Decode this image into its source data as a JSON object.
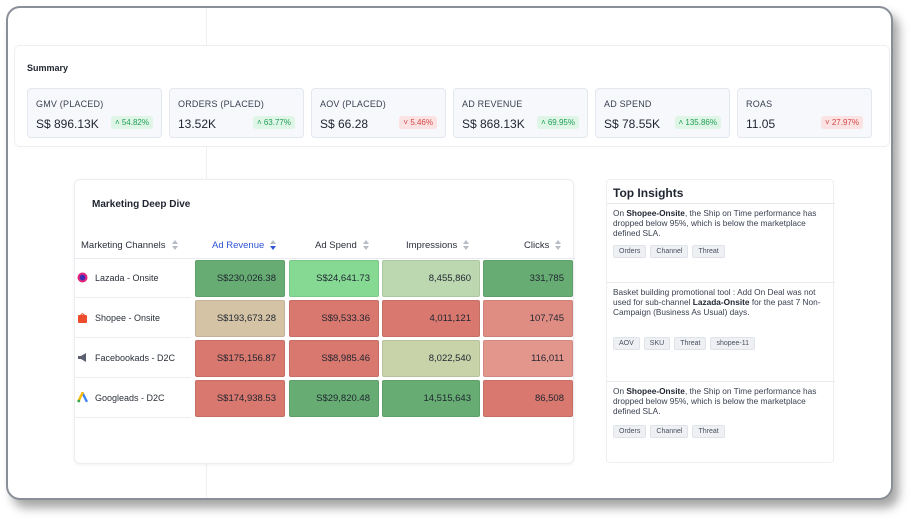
{
  "summary": {
    "title": "Summary",
    "kpis": [
      {
        "label": "GMV (PLACED)",
        "value": "S$ 896.13K",
        "change": "54.82%",
        "direction": "up"
      },
      {
        "label": "ORDERS (PLACED)",
        "value": "13.52K",
        "change": "63.77%",
        "direction": "up"
      },
      {
        "label": "AOV (PLACED)",
        "value": "S$ 66.28",
        "change": "5.46%",
        "direction": "down"
      },
      {
        "label": "AD REVENUE",
        "value": "S$ 868.13K",
        "change": "69.95%",
        "direction": "up"
      },
      {
        "label": "AD SPEND",
        "value": "S$ 78.55K",
        "change": "135.86%",
        "direction": "up"
      },
      {
        "label": "ROAS",
        "value": "11.05",
        "change": "27.97%",
        "direction": "down"
      }
    ]
  },
  "deep_dive": {
    "title": "Marketing Deep Dive",
    "columns": [
      "Marketing Channels",
      "Ad Revenue",
      "Ad Spend",
      "Impressions",
      "Clicks"
    ],
    "active_sort_column": "Ad Revenue",
    "rows": [
      {
        "channel": "Lazada - Onsite",
        "icon": "lazada-icon",
        "values": [
          "S$230,026.38",
          "S$24,641.73",
          "8,455,860",
          "331,785"
        ],
        "colors": [
          "#67ad73",
          "#86d993",
          "#bbd8b0",
          "#67ad73"
        ]
      },
      {
        "channel": "Shopee - Onsite",
        "icon": "shopee-icon",
        "values": [
          "S$193,673.28",
          "S$9,533.36",
          "4,011,121",
          "107,745"
        ],
        "colors": [
          "#d4c3a5",
          "#d8786e",
          "#d8786e",
          "#df8d83"
        ]
      },
      {
        "channel": "Facebookads - D2C",
        "icon": "megaphone-icon",
        "values": [
          "S$175,156.87",
          "S$8,985.46",
          "8,022,540",
          "116,011"
        ],
        "colors": [
          "#d8786e",
          "#d8786e",
          "#c8d3a9",
          "#e3968c"
        ]
      },
      {
        "channel": "Googleads - D2C",
        "icon": "google-ads-icon",
        "values": [
          "S$174,938.53",
          "S$29,820.48",
          "14,515,643",
          "86,508"
        ],
        "colors": [
          "#d8786e",
          "#67ad73",
          "#67ad73",
          "#d8786e"
        ]
      }
    ]
  },
  "insights": {
    "title": "Top Insights",
    "items": [
      {
        "pre": "On ",
        "bold1": "Shopee-Onsite",
        "mid": ", the Ship on Time performance has dropped below 95%, which is below the marketplace defined SLA.",
        "bold2": "",
        "post": "",
        "tags": [
          "Orders",
          "Channel",
          "Threat"
        ]
      },
      {
        "pre": "Basket building promotional tool : Add On Deal was not used for sub-channel ",
        "bold1": "Lazada-Onsite",
        "mid": " for the past 7 Non-Campaign (Business As Usual) days.",
        "bold2": "",
        "post": "",
        "tags": [
          "AOV",
          "SKU",
          "Threat",
          "shopee-11"
        ]
      },
      {
        "pre": "On ",
        "bold1": "Shopee-Onsite",
        "mid": ", the Ship on Time performance has dropped below 95%, which is below the marketplace defined SLA.",
        "bold2": "",
        "post": "",
        "tags": [
          "Orders",
          "Channel",
          "Threat"
        ]
      }
    ]
  }
}
